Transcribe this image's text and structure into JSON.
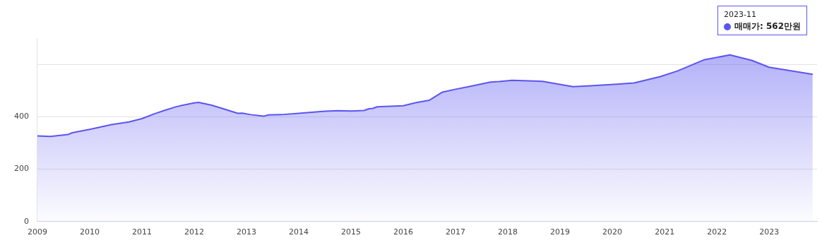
{
  "chart_data": {
    "type": "area",
    "x": [
      "2009-01",
      "2009-04",
      "2009-08",
      "2009-09",
      "2010-01",
      "2010-06",
      "2010-10",
      "2011-01",
      "2011-04",
      "2011-06",
      "2011-09",
      "2012-01",
      "2012-02",
      "2012-05",
      "2012-07",
      "2012-11",
      "2012-12",
      "2013-02",
      "2013-05",
      "2013-06",
      "2013-09",
      "2014-01",
      "2014-07",
      "2014-10",
      "2015-01",
      "2015-04",
      "2015-05",
      "2015-06",
      "2015-07",
      "2016-01",
      "2016-04",
      "2016-07",
      "2016-10",
      "2017-01",
      "2017-04",
      "2017-09",
      "2017-11",
      "2018-02",
      "2018-09",
      "2018-12",
      "2019-04",
      "2019-08",
      "2020-02",
      "2020-06",
      "2020-12",
      "2021-04",
      "2021-10",
      "2022-04",
      "2022-09",
      "2023-01",
      "2023-02",
      "2023-11"
    ],
    "values": [
      327,
      325,
      332,
      339,
      352,
      370,
      380,
      393,
      412,
      423,
      439,
      453,
      455,
      444,
      434,
      413,
      414,
      408,
      402,
      407,
      408,
      413,
      421,
      423,
      422,
      424,
      430,
      432,
      438,
      442,
      454,
      463,
      494,
      505,
      515,
      532,
      534,
      539,
      535,
      526,
      515,
      518,
      524,
      529,
      553,
      575,
      617,
      636,
      615,
      589,
      586,
      562
    ],
    "color": "#5b55f0",
    "xlim": [
      "2009-01",
      "2023-12"
    ],
    "xticks": [
      "2009",
      "2010",
      "2011",
      "2012",
      "2013",
      "2014",
      "2015",
      "2016",
      "2017",
      "2018",
      "2019",
      "2020",
      "2021",
      "2022",
      "2023"
    ],
    "ylim": [
      0,
      700
    ],
    "yticks": [
      0,
      200,
      400,
      {
        "value": 600,
        "label": null
      }
    ],
    "grid": "y",
    "legend": false,
    "marker": "none",
    "annotations": [
      "2023-11",
      "매매가: 562만원"
    ]
  }
}
